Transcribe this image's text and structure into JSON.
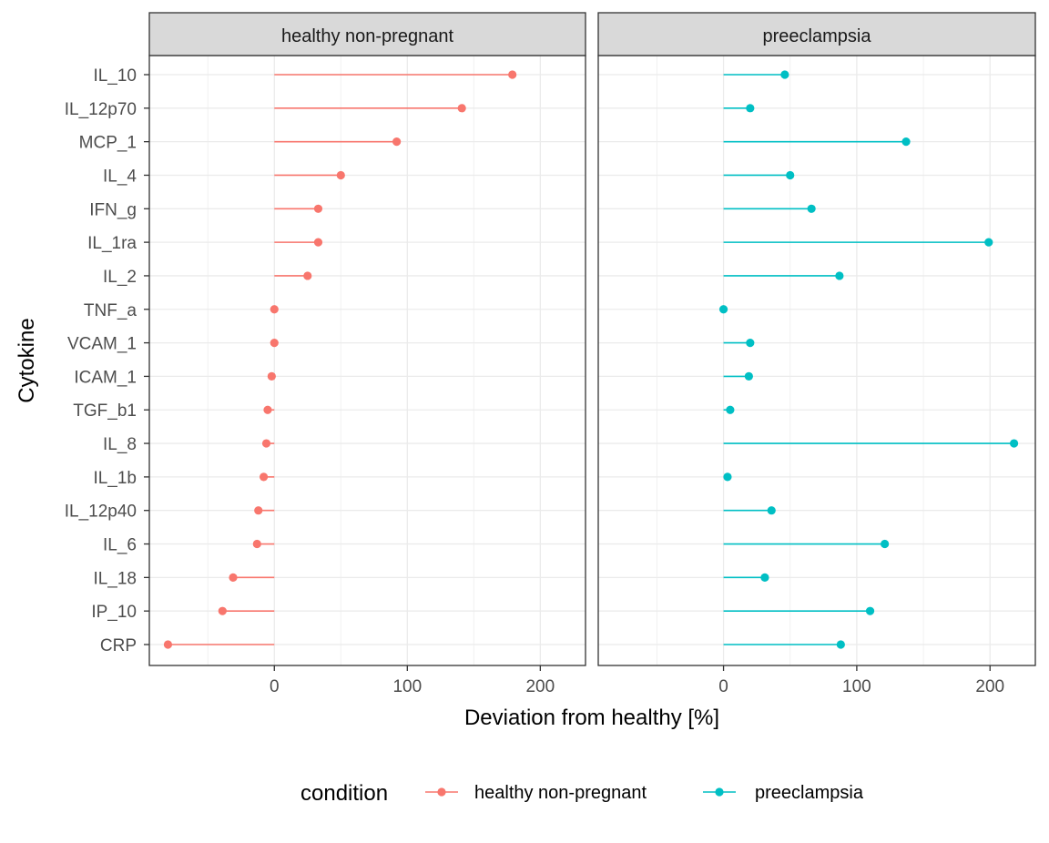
{
  "chart_data": {
    "type": "lollipop",
    "xlabel": "Deviation from healthy [%]",
    "ylabel": "Cytokine",
    "xlim": [
      -94,
      234
    ],
    "xticks": [
      0,
      100,
      200
    ],
    "grid": true,
    "legend_position": "bottom",
    "legend_title": "condition",
    "categories": [
      "IL_10",
      "IL_12p70",
      "MCP_1",
      "IL_4",
      "IFN_g",
      "IL_1ra",
      "IL_2",
      "TNF_a",
      "VCAM_1",
      "ICAM_1",
      "TGF_b1",
      "IL_8",
      "IL_1b",
      "IL_12p40",
      "IL_6",
      "IL_18",
      "IP_10",
      "CRP"
    ],
    "series": [
      {
        "name": "healthy non-pregnant",
        "color": "#F8766D",
        "values": [
          179,
          141,
          92,
          50,
          33,
          33,
          25,
          0,
          0,
          -2,
          -5,
          -6,
          -8,
          -12,
          -13,
          -31,
          -39,
          -80
        ]
      },
      {
        "name": "preeclampsia",
        "color": "#00BFC4",
        "values": [
          46,
          20,
          137,
          50,
          66,
          199,
          87,
          0,
          20,
          19,
          5,
          218,
          3,
          36,
          121,
          31,
          110,
          88
        ]
      }
    ]
  }
}
